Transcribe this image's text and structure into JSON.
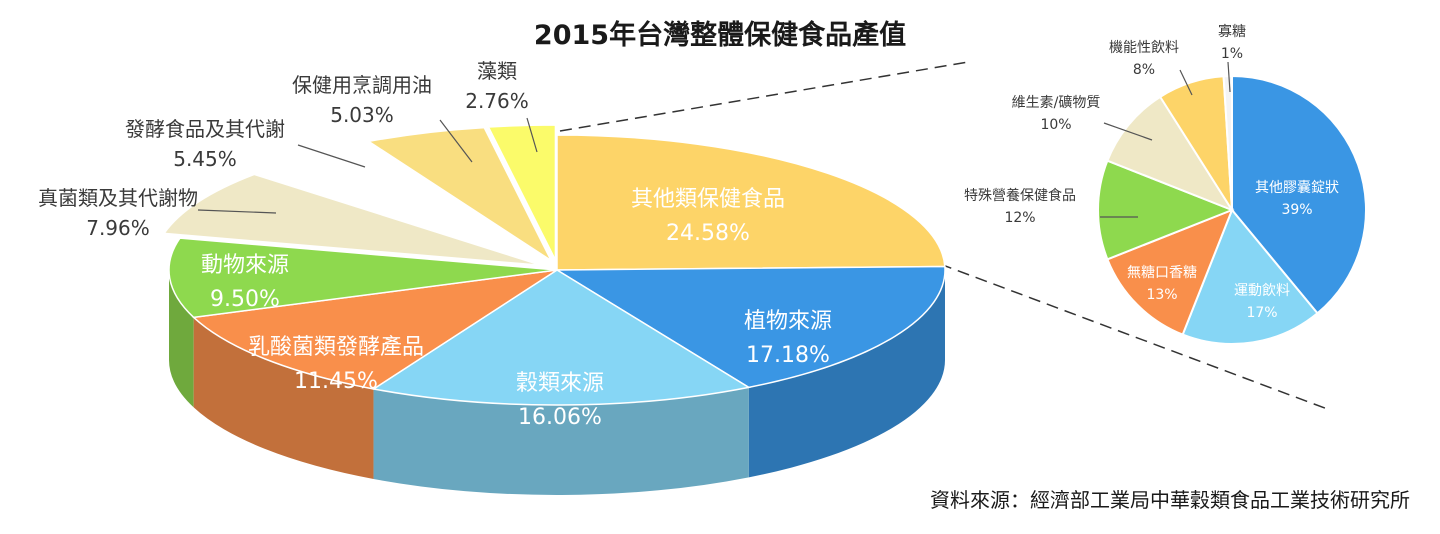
{
  "chart_data": [
    {
      "type": "pie",
      "title": "2015年台灣整體保健食品產值",
      "slices": [
        {
          "name": "其他類保健食品",
          "value": 24.58,
          "label": "24.58%",
          "color": "#FDD468"
        },
        {
          "name": "植物來源",
          "value": 17.18,
          "label": "17.18%",
          "color": "#3A96E4"
        },
        {
          "name": "穀類來源",
          "value": 16.06,
          "label": "16.06%",
          "color": "#86D6F5"
        },
        {
          "name": "乳酸菌類發酵產品",
          "value": 11.45,
          "label": "11.45%",
          "color": "#F98F4B"
        },
        {
          "name": "動物來源",
          "value": 9.5,
          "label": "9.50%",
          "color": "#8ED94E"
        },
        {
          "name": "真菌類及其代謝物",
          "value": 7.96,
          "label": "7.96%",
          "color": "#EFE8C6"
        },
        {
          "name": "發酵食品及其代謝",
          "value": 5.45,
          "label": "5.45%",
          "color": "#FFFFFF"
        },
        {
          "name": "保健用烹調用油",
          "value": 5.03,
          "label": "5.03%",
          "color": "#F9DE80"
        },
        {
          "name": "藻類",
          "value": 2.76,
          "label": "2.76%",
          "color": "#FBFB6A"
        }
      ]
    },
    {
      "type": "pie",
      "title": "",
      "slices": [
        {
          "name": "其他膠囊錠狀",
          "value": 39,
          "label": "39%",
          "color": "#3A96E4"
        },
        {
          "name": "運動飲料",
          "value": 17,
          "label": "17%",
          "color": "#86D6F5"
        },
        {
          "name": "無糖口香糖",
          "value": 13,
          "label": "13%",
          "color": "#F98F4B"
        },
        {
          "name": "特殊營養保健食品",
          "value": 12,
          "label": "12%",
          "color": "#8ED94E"
        },
        {
          "name": "維生素/礦物質",
          "value": 10,
          "label": "10%",
          "color": "#EFE8C6"
        },
        {
          "name": "機能性飲料",
          "value": 8,
          "label": "8%",
          "color": "#FDD468"
        },
        {
          "name": "寡糖",
          "value": 1,
          "label": "1%",
          "color": "#F4F4F4"
        }
      ]
    }
  ],
  "source": "資料來源：經濟部工業局中華穀類食品工業技術研究所"
}
